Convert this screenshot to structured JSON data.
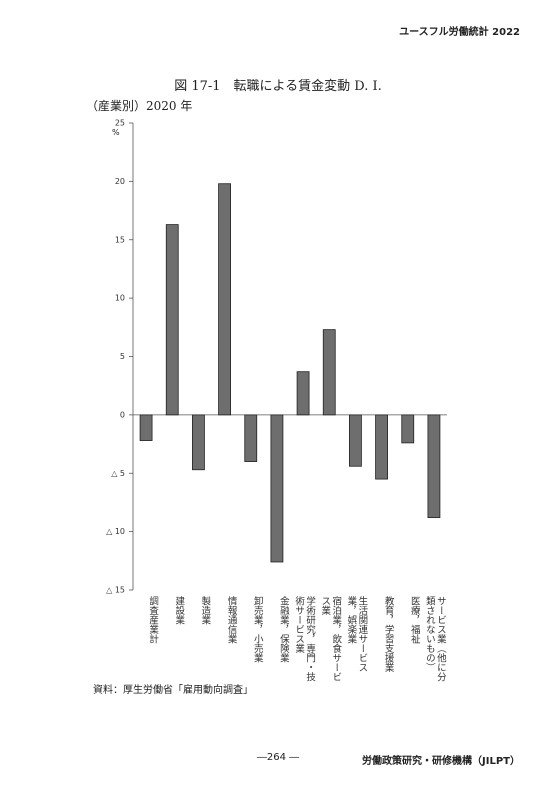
{
  "header": "ユースフル労働統計 2022",
  "chart_data": {
    "type": "bar",
    "title": "図 17-1　転職による賃金変動 D. I.",
    "subtitle": "（産業別）2020 年",
    "y_label": "%",
    "categories": [
      "調査産業計",
      "建設業",
      "製造業",
      "情報通信業",
      "卸売業，小売業",
      "金融業，保険業",
      "学術研究，専門・技術サービス業",
      "宿泊業，飲食サービス業",
      "生活関連サービス業，娯楽業",
      "教育，学習支援業",
      "医療，福祉",
      "サービス業（他に分類されないもの）"
    ],
    "values": [
      -2.2,
      16.3,
      -4.7,
      19.8,
      -4.0,
      -12.6,
      3.7,
      7.3,
      -4.4,
      -5.5,
      -2.4,
      -8.8
    ],
    "color": "#6e6e6e",
    "ylim": [
      -15,
      25
    ],
    "yticks": [
      25,
      20,
      15,
      10,
      5,
      0,
      {
        "value": -5,
        "label": "△ 5"
      },
      {
        "value": -10,
        "label": "△ 10"
      },
      {
        "value": -15,
        "label": "△ 15"
      }
    ],
    "grid": false
  },
  "source": "資料：厚生労働省「雇用動向調査」",
  "page_number": "―264 ―",
  "publisher": "労働政策研究・研修機構（JILPT）"
}
